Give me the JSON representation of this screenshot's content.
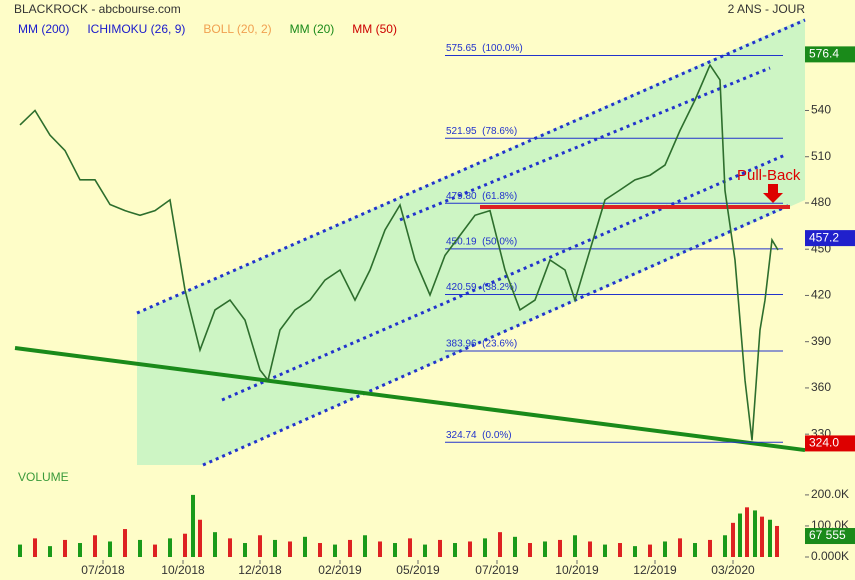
{
  "chart_data": [
    {
      "type": "line",
      "title": "BLACKROCK - abcbourse.com",
      "subtitle": "2 ANS - JOUR",
      "legend": [
        {
          "name": "MM (200)",
          "color": "#1a1acc"
        },
        {
          "name": "ICHIMOKU (26, 9)",
          "color": "#1a1acc"
        },
        {
          "name": "BOLL (20, 2)",
          "color": "#f0a050"
        },
        {
          "name": "MM (20)",
          "color": "#1a8a1a"
        },
        {
          "name": "MM (50)",
          "color": "#cc0000"
        }
      ],
      "x": [
        5,
        20,
        35,
        50,
        65,
        80,
        95,
        110,
        125,
        140,
        155,
        170,
        185,
        200,
        215,
        230,
        245,
        253,
        265,
        280,
        295,
        310,
        325,
        340,
        355,
        370,
        385,
        400,
        415,
        430,
        445,
        460,
        475,
        490,
        505,
        520,
        535,
        550,
        560,
        575,
        590,
        605,
        620,
        635,
        650,
        665,
        680,
        695,
        705,
        710,
        720,
        730,
        737,
        745,
        750,
        757,
        763
      ],
      "series": [
        {
          "color": "#2d6e2d",
          "values": [
            530.6,
            540,
            524,
            514,
            495,
            495,
            479,
            475,
            472,
            475,
            482,
            423.5,
            384.6,
            410.6,
            417,
            404,
            371.6,
            365,
            397.6,
            410.6,
            417,
            430,
            436.5,
            417,
            436.5,
            462.5,
            478.7,
            443,
            420.3,
            446,
            459,
            472,
            475,
            436.5,
            410.6,
            417,
            443,
            436.5,
            417,
            449.5,
            482,
            488.4,
            495,
            498,
            504.6,
            527,
            546.8,
            569.5,
            559.8,
            488,
            443,
            365,
            326,
            397.6,
            417,
            456,
            449.5
          ]
        }
      ],
      "xlim": [
        0,
        790
      ],
      "ylim": [
        310,
        600
      ],
      "yticks": [
        330,
        360,
        390,
        420,
        450,
        480,
        510,
        540
      ],
      "xticks": [
        {
          "value": 88,
          "label": "07/2018"
        },
        {
          "value": 168,
          "label": "10/2018"
        },
        {
          "value": 245,
          "label": "12/2018"
        },
        {
          "value": 325,
          "label": "02/2019"
        },
        {
          "value": 403,
          "label": "05/2019"
        },
        {
          "value": 482,
          "label": "07/2019"
        },
        {
          "value": 562,
          "label": "10/2019"
        },
        {
          "value": 640,
          "label": "12/2019"
        },
        {
          "value": 718,
          "label": "03/2020"
        }
      ],
      "fib_levels": [
        {
          "value": 575.65,
          "label": "575.65  (100.0%)"
        },
        {
          "value": 521.95,
          "label": "521.95  (78.6%)"
        },
        {
          "value": 479.8,
          "label": "479.80  (61.8%)"
        },
        {
          "value": 450.19,
          "label": "450.19  (50.0%)"
        },
        {
          "value": 420.59,
          "label": "420.59  (38.2%)"
        },
        {
          "value": 383.96,
          "label": "383.96  (23.6%)"
        },
        {
          "value": 324.74,
          "label": "324.74  (0.0%)"
        }
      ],
      "price_labels": [
        {
          "value": 576.4,
          "label": "576.4",
          "color": "#1a8a1a"
        },
        {
          "value": 457.2,
          "label": "457.2",
          "color": "#2020cc"
        },
        {
          "value": 324,
          "label": "324.0",
          "color": "#dd0000"
        }
      ],
      "trendlines": [
        {
          "color": "#2233cc",
          "x": [
            122,
            790
          ],
          "values": [
            408.6,
            598.7
          ]
        },
        {
          "color": "#2233cc",
          "x": [
            385,
            755
          ],
          "values": [
            469,
            567.6
          ]
        },
        {
          "color": "#2233cc",
          "x": [
            207,
            770
          ],
          "values": [
            352.2,
            511.1
          ]
        },
        {
          "color": "#2233cc",
          "x": [
            188,
            775
          ],
          "values": [
            310,
            478.7
          ]
        },
        {
          "color": "#1a8a1a",
          "x": [
            0,
            790
          ],
          "values": [
            385.9,
            319.7
          ]
        },
        {
          "color": "#dd2222",
          "x": [
            465,
            775
          ],
          "values": [
            477.4,
            477.4
          ]
        }
      ],
      "annotation": "Pull-Back"
    },
    {
      "type": "bar",
      "title": "VOLUME",
      "x": [
        5,
        20,
        35,
        50,
        65,
        80,
        95,
        110,
        125,
        140,
        155,
        170,
        178,
        185,
        200,
        215,
        230,
        245,
        260,
        275,
        290,
        305,
        320,
        335,
        350,
        365,
        380,
        395,
        410,
        425,
        440,
        455,
        470,
        485,
        500,
        515,
        530,
        545,
        560,
        575,
        590,
        605,
        620,
        635,
        650,
        665,
        680,
        695,
        710,
        718,
        725,
        732,
        740,
        747,
        755,
        762
      ],
      "values": [
        40000,
        60000,
        35000,
        55000,
        45000,
        70000,
        50000,
        90000,
        55000,
        40000,
        60000,
        75000,
        200000,
        120000,
        80000,
        60000,
        45000,
        70000,
        55000,
        50000,
        65000,
        45000,
        40000,
        55000,
        70000,
        50000,
        45000,
        60000,
        40000,
        55000,
        45000,
        50000,
        60000,
        80000,
        65000,
        45000,
        50000,
        55000,
        70000,
        50000,
        40000,
        45000,
        35000,
        40000,
        50000,
        60000,
        45000,
        55000,
        70000,
        110000,
        140000,
        160000,
        150000,
        130000,
        120000,
        100000
      ],
      "colors": [
        "#1a9a1a",
        "#dd2222"
      ],
      "xlim": [
        0,
        790
      ],
      "ylim": [
        0,
        248000
      ],
      "yticks": [
        {
          "value": 0,
          "label": "0.000K"
        },
        {
          "value": 100000,
          "label": "100.0K"
        },
        {
          "value": 200000,
          "label": "200.0K"
        }
      ],
      "last_label": {
        "value": 67555,
        "label": "67 555"
      }
    }
  ]
}
